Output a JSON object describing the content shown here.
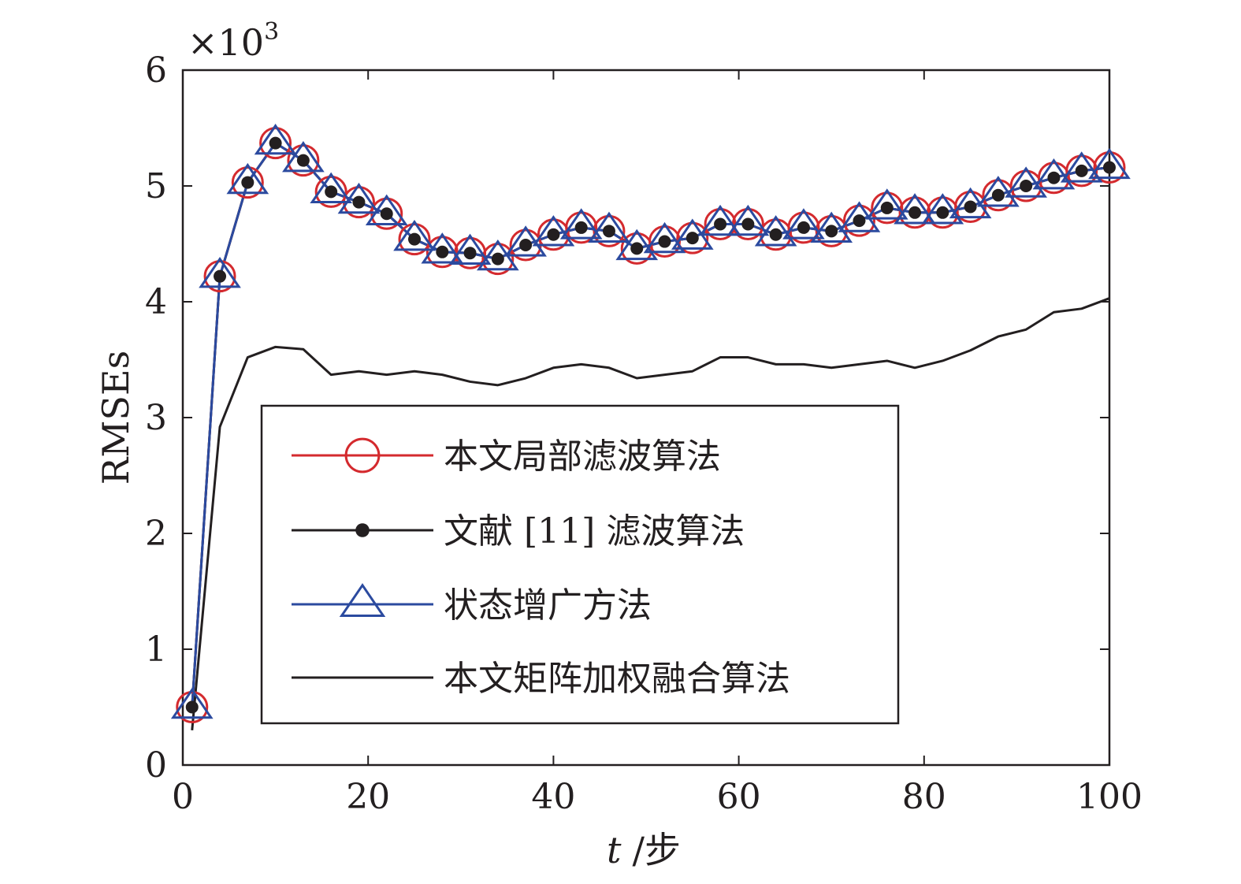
{
  "chart_data": {
    "type": "line",
    "xlabel_var": "t",
    "xlabel_unit": "/步",
    "ylabel": "RMSEs",
    "y_multiplier": "×10",
    "y_multiplier_exp": "3",
    "xlim": [
      0,
      100
    ],
    "ylim": [
      0,
      6
    ],
    "xticks": [
      0,
      20,
      40,
      60,
      80,
      100
    ],
    "yticks": [
      0,
      1,
      2,
      3,
      4,
      5,
      6
    ],
    "grid": false,
    "legend_position": "lower-center",
    "series": [
      {
        "name": "本文局部滤波算法",
        "color": "#d42a2e",
        "marker": "circle",
        "x": [
          1,
          4,
          7,
          10,
          13,
          16,
          19,
          22,
          25,
          28,
          31,
          34,
          37,
          40,
          43,
          46,
          49,
          52,
          55,
          58,
          61,
          64,
          67,
          70,
          73,
          76,
          79,
          82,
          85,
          88,
          91,
          94,
          97,
          100
        ],
        "values": [
          0.5,
          4.22,
          5.03,
          5.37,
          5.22,
          4.95,
          4.86,
          4.76,
          4.54,
          4.43,
          4.42,
          4.37,
          4.49,
          4.58,
          4.64,
          4.61,
          4.46,
          4.52,
          4.55,
          4.67,
          4.67,
          4.58,
          4.64,
          4.61,
          4.7,
          4.81,
          4.77,
          4.77,
          4.82,
          4.92,
          5.0,
          5.07,
          5.13,
          5.16
        ]
      },
      {
        "name": "文献 [11] 滤波算法",
        "color": "#231f20",
        "marker": "dot",
        "x": [
          1,
          4,
          7,
          10,
          13,
          16,
          19,
          22,
          25,
          28,
          31,
          34,
          37,
          40,
          43,
          46,
          49,
          52,
          55,
          58,
          61,
          64,
          67,
          70,
          73,
          76,
          79,
          82,
          85,
          88,
          91,
          94,
          97,
          100
        ],
        "values": [
          0.5,
          4.22,
          5.03,
          5.37,
          5.22,
          4.95,
          4.86,
          4.76,
          4.54,
          4.43,
          4.42,
          4.37,
          4.49,
          4.58,
          4.64,
          4.61,
          4.46,
          4.52,
          4.55,
          4.67,
          4.67,
          4.58,
          4.64,
          4.61,
          4.7,
          4.81,
          4.77,
          4.77,
          4.82,
          4.92,
          5.0,
          5.07,
          5.13,
          5.16
        ]
      },
      {
        "name": "状态增广方法",
        "color": "#2b4a9f",
        "marker": "triangle",
        "x": [
          1,
          4,
          7,
          10,
          13,
          16,
          19,
          22,
          25,
          28,
          31,
          34,
          37,
          40,
          43,
          46,
          49,
          52,
          55,
          58,
          61,
          64,
          67,
          70,
          73,
          76,
          79,
          82,
          85,
          88,
          91,
          94,
          97,
          100
        ],
        "values": [
          0.5,
          4.22,
          5.03,
          5.37,
          5.22,
          4.95,
          4.86,
          4.76,
          4.54,
          4.43,
          4.42,
          4.37,
          4.49,
          4.58,
          4.64,
          4.61,
          4.46,
          4.52,
          4.55,
          4.67,
          4.67,
          4.58,
          4.64,
          4.61,
          4.7,
          4.81,
          4.77,
          4.77,
          4.82,
          4.92,
          5.0,
          5.07,
          5.13,
          5.16
        ]
      },
      {
        "name": "本文矩阵加权融合算法",
        "color": "#231f20",
        "marker": "none",
        "x": [
          1,
          4,
          7,
          10,
          13,
          16,
          19,
          22,
          25,
          28,
          31,
          34,
          37,
          40,
          43,
          46,
          49,
          52,
          55,
          58,
          61,
          64,
          67,
          70,
          73,
          76,
          79,
          82,
          85,
          88,
          91,
          94,
          97,
          100
        ],
        "values": [
          0.3,
          2.92,
          3.52,
          3.61,
          3.59,
          3.37,
          3.4,
          3.37,
          3.4,
          3.37,
          3.31,
          3.28,
          3.34,
          3.43,
          3.46,
          3.43,
          3.34,
          3.37,
          3.4,
          3.52,
          3.52,
          3.46,
          3.46,
          3.43,
          3.46,
          3.49,
          3.43,
          3.49,
          3.58,
          3.7,
          3.76,
          3.91,
          3.94,
          4.03
        ]
      }
    ]
  }
}
